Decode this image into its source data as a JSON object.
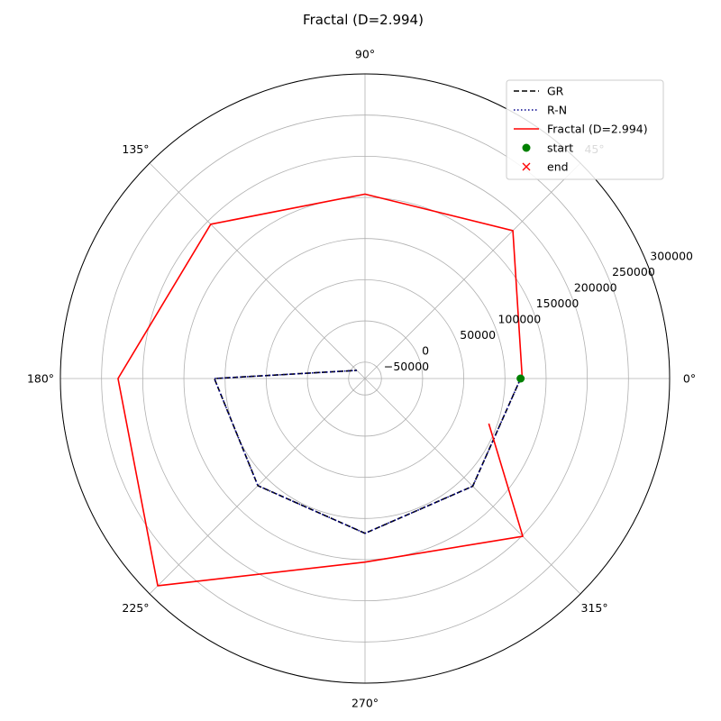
{
  "chart_data": {
    "type": "polar-line",
    "title": "Fractal (D=2.994)",
    "theta_unit": "degrees",
    "theta_tick_labels": [
      "0°",
      "45°",
      "90°",
      "135°",
      "180°",
      "225°",
      "270°",
      "315°"
    ],
    "theta_ticks": [
      0,
      45,
      90,
      135,
      180,
      225,
      270,
      315
    ],
    "r_ticks": [
      -50000,
      0,
      50000,
      100000,
      150000,
      200000,
      250000,
      300000
    ],
    "r_tick_labels": [
      "−50000",
      "0",
      "50000",
      "100000",
      "150000",
      "200000",
      "250000",
      "300000"
    ],
    "r_range": [
      -70000,
      300000
    ],
    "r_label_angle_deg": 22.5,
    "grid": true,
    "legend_position": "top-right",
    "series": [
      {
        "name": "GR",
        "style": "dashed",
        "color": "#000000",
        "points": [
          [
            0,
            119000
          ],
          [
            -45,
            115000
          ],
          [
            -90,
            118000
          ],
          [
            -135,
            114000
          ],
          [
            -180,
            113000
          ],
          [
            -225,
            -56000
          ]
        ]
      },
      {
        "name": "R-N",
        "style": "dotted",
        "color": "#00008b",
        "points": [
          [
            0,
            119000
          ],
          [
            -45,
            115000
          ],
          [
            -90,
            118000
          ],
          [
            -135,
            114000
          ],
          [
            -180,
            113000
          ],
          [
            -225,
            -56000
          ]
        ]
      },
      {
        "name": "Fractal (D=2.994)",
        "style": "solid",
        "color": "#ff0000",
        "points": [
          [
            0,
            121000
          ],
          [
            45,
            184000
          ],
          [
            90,
            154000
          ],
          [
            135,
            195000
          ],
          [
            180,
            230000
          ],
          [
            -135,
            286000
          ],
          [
            -90,
            153000
          ],
          [
            -45,
            201000
          ],
          [
            -20,
            90000
          ]
        ]
      }
    ],
    "markers": [
      {
        "name": "start",
        "symbol": "circle",
        "color": "#008000",
        "theta": 0,
        "r": 119000
      },
      {
        "name": "end",
        "symbol": "x",
        "color": "#ff0000"
      }
    ]
  }
}
